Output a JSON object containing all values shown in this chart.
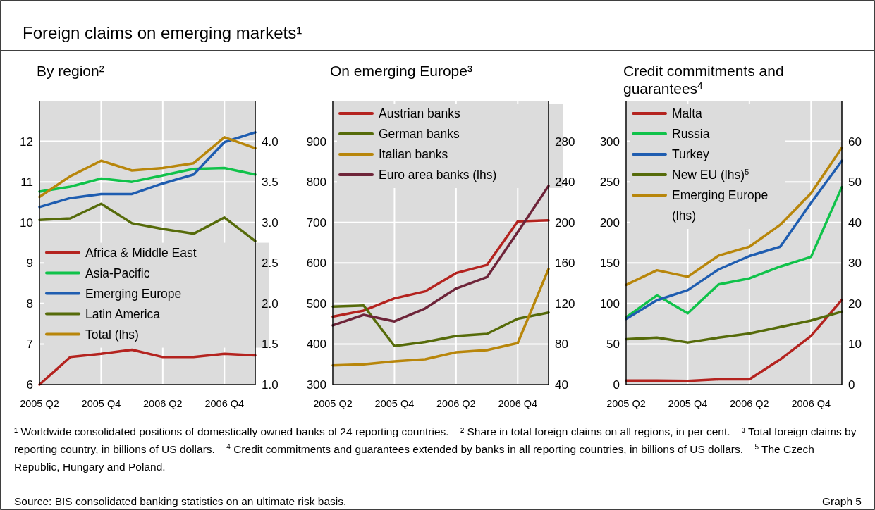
{
  "chart_data": [
    {
      "type": "other",
      "title": "Foreign claims on emerging markets¹",
      "annotations": [
        "¹ Worldwide consolidated positions of domestically owned banks of 24 reporting countries.",
        "² Share in total foreign claims on all regions, in per cent.",
        "³ Total foreign claims by reporting country, in billions of US dollars.",
        "$^{4}$ Credit commitments and guarantees extended by banks in all reporting countries, in billions of US dollars.",
        "$^{5}$ The Czech Republic, Hungary and Poland.",
        "Source: BIS consolidated banking statistics on an ultimate risk basis.",
        "Graph 5"
      ]
    },
    {
      "type": "line",
      "title": "By region²",
      "categories": [
        "2005 Q2",
        null,
        "2005 Q4",
        null,
        "2006 Q2",
        null,
        "2006 Q4",
        null
      ],
      "ylim": [
        6,
        13
      ],
      "yticks": [
        6,
        7,
        8,
        9,
        10,
        11,
        12
      ],
      "y2lim": [
        1,
        4.5
      ],
      "y2ticks": [
        {
          "value": 1,
          "label": "1.0"
        },
        1.5,
        {
          "value": 2,
          "label": "2.0"
        },
        2.5,
        {
          "value": 3,
          "label": "3.0"
        },
        3.5,
        {
          "value": 4,
          "label": "4.0"
        }
      ],
      "grid": true,
      "legend": "bottom left",
      "line_style": "solid",
      "series": [
        {
          "name": "Africa & Middle East",
          "color": "#b4231f",
          "axis": "y2",
          "values": [
            1.0,
            1.34,
            1.38,
            1.43,
            1.34,
            1.34,
            1.38,
            1.36
          ]
        },
        {
          "name": "Asia-Pacific",
          "color": "#10c24a",
          "axis": "y2",
          "values": [
            3.38,
            3.44,
            3.54,
            3.5,
            3.58,
            3.66,
            3.67,
            3.59
          ]
        },
        {
          "name": "Emerging Europe",
          "color": "#1f5db0",
          "axis": "y2",
          "values": [
            3.19,
            3.3,
            3.35,
            3.35,
            3.48,
            3.59,
            3.99,
            4.11
          ]
        },
        {
          "name": "Latin America",
          "color": "#566b0a",
          "axis": "y2",
          "values": [
            3.03,
            3.05,
            3.23,
            2.99,
            2.92,
            2.86,
            3.06,
            2.77
          ]
        },
        {
          "name": "Total (lhs)",
          "color": "#b8860b",
          "values": [
            10.63,
            11.14,
            11.52,
            11.28,
            11.34,
            11.46,
            12.1,
            11.83
          ]
        }
      ]
    },
    {
      "type": "line",
      "title": "On emerging Europe³",
      "categories": [
        "2005 Q2",
        null,
        "2005 Q4",
        null,
        "2006 Q2",
        null,
        "2006 Q4",
        null
      ],
      "ylim": [
        300,
        1000
      ],
      "yticks": [
        300,
        400,
        500,
        600,
        700,
        800,
        900
      ],
      "y2lim": [
        40,
        320
      ],
      "y2ticks": [
        40,
        80,
        120,
        160,
        200,
        240,
        280
      ],
      "grid": true,
      "legend": "top left",
      "line_style": "solid",
      "series": [
        {
          "name": "Austrian banks",
          "color": "#b4231f",
          "axis": "y2",
          "values": [
            107,
            113,
            125,
            132,
            150,
            158,
            201,
            202
          ]
        },
        {
          "name": "German banks",
          "color": "#566b0a",
          "axis": "y2",
          "values": [
            117,
            118,
            78,
            82,
            88,
            90,
            105,
            111
          ]
        },
        {
          "name": "Italian banks",
          "color": "#b8860b",
          "axis": "y2",
          "values": [
            59,
            60,
            63,
            65,
            72,
            74,
            81,
            154
          ]
        },
        {
          "name": "Euro area banks (lhs)",
          "color": "#6e2439",
          "values": [
            446,
            472,
            456,
            488,
            537,
            565,
            676,
            790
          ]
        }
      ]
    },
    {
      "type": "line",
      "title": "Credit commitments and guarantees$^{4}$",
      "categories": [
        "2005 Q2",
        null,
        "2005 Q4",
        null,
        "2006 Q2",
        null,
        "2006 Q4",
        null
      ],
      "ylim": [
        0,
        350
      ],
      "yticks": [
        0,
        50,
        100,
        150,
        200,
        250,
        300
      ],
      "y2lim": [
        0,
        70
      ],
      "y2ticks": [
        0,
        10,
        20,
        30,
        40,
        50,
        60
      ],
      "grid": true,
      "legend": "top left",
      "line_style": "solid",
      "series": [
        {
          "name": "Malta",
          "color": "#b4231f",
          "axis": "y2",
          "values": [
            1.0,
            1.0,
            0.9,
            1.3,
            1.3,
            6.2,
            12.0,
            20.9
          ]
        },
        {
          "name": "Russia",
          "color": "#10c24a",
          "axis": "y2",
          "values": [
            16.6,
            22.0,
            17.6,
            24.7,
            26.2,
            29.1,
            31.5,
            48.7
          ]
        },
        {
          "name": "Turkey",
          "color": "#1f5db0",
          "axis": "y2",
          "values": [
            16.2,
            20.8,
            23.3,
            28.4,
            31.7,
            34.0,
            44.8,
            55.2
          ]
        },
        {
          "name": "New EU (lhs)$^{5}$",
          "color": "#566b0a",
          "values": [
            56,
            58,
            52,
            58,
            63,
            71,
            79,
            90
          ]
        },
        {
          "name": "Emerging Europe (lhs)",
          "color": "#b8860b",
          "values": [
            123,
            141,
            133,
            159,
            170,
            197,
            236,
            292
          ]
        }
      ]
    }
  ]
}
